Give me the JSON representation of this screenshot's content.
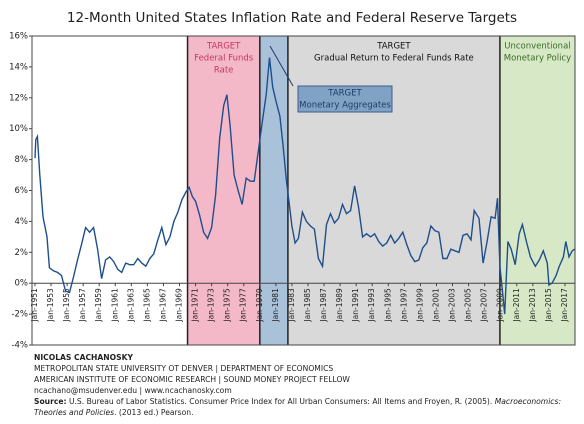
{
  "chart_data": {
    "type": "line",
    "title": "12-Month United States Inflation Rate and Federal Reserve Targets",
    "color": "#1f4e8c",
    "x": [
      1951.0,
      1951.1,
      1951.3,
      1951.6,
      1952.0,
      1952.5,
      1952.8,
      1953.3,
      1953.8,
      1954.3,
      1954.8,
      1955.3,
      1955.8,
      1956.3,
      1956.8,
      1957.3,
      1957.8,
      1958.3,
      1958.8,
      1959.3,
      1959.8,
      1960.3,
      1960.8,
      1961.3,
      1961.8,
      1962.3,
      1962.8,
      1963.3,
      1963.8,
      1964.3,
      1964.8,
      1965.3,
      1965.8,
      1966.3,
      1966.8,
      1967.3,
      1967.8,
      1968.3,
      1968.8,
      1969.3,
      1969.8,
      1970.2,
      1970.6,
      1971.0,
      1971.5,
      1972.0,
      1972.5,
      1973.0,
      1973.5,
      1974.0,
      1974.5,
      1974.9,
      1975.3,
      1975.8,
      1976.3,
      1976.8,
      1977.3,
      1977.8,
      1978.3,
      1978.8,
      1979.3,
      1979.8,
      1980.2,
      1980.6,
      1981.0,
      1981.5,
      1981.9,
      1982.3,
      1982.7,
      1983.0,
      1983.4,
      1983.8,
      1984.3,
      1984.8,
      1985.3,
      1985.8,
      1986.3,
      1986.8,
      1987.3,
      1987.8,
      1988.3,
      1988.8,
      1989.3,
      1989.8,
      1990.3,
      1990.8,
      1991.3,
      1991.8,
      1992.3,
      1992.8,
      1993.3,
      1993.8,
      1994.3,
      1994.8,
      1995.3,
      1995.8,
      1996.3,
      1996.8,
      1997.3,
      1997.8,
      1998.3,
      1998.8,
      1999.3,
      1999.8,
      2000.3,
      2000.8,
      2001.3,
      2001.8,
      2002.3,
      2002.8,
      2003.3,
      2003.8,
      2004.3,
      2004.8,
      2005.3,
      2005.7,
      2006.3,
      2006.8,
      2007.3,
      2007.8,
      2008.3,
      2008.6,
      2008.9,
      2009.2,
      2009.5,
      2009.9,
      2010.3,
      2010.8,
      2011.3,
      2011.7,
      2012.2,
      2012.7,
      2013.3,
      2013.8,
      2014.3,
      2014.8,
      2015.0,
      2015.4,
      2015.9,
      2016.3,
      2016.8,
      2017.1,
      2017.5,
      2017.9,
      2018.2
    ],
    "values": [
      8.1,
      9.3,
      9.5,
      7,
      4.3,
      3,
      1,
      0.8,
      0.7,
      0.5,
      -0.5,
      -0.6,
      0.4,
      1.5,
      2.5,
      3.6,
      3.3,
      3.6,
      2.2,
      0.3,
      1.5,
      1.7,
      1.4,
      0.9,
      0.7,
      1.3,
      1.2,
      1.2,
      1.6,
      1.3,
      1.1,
      1.6,
      1.9,
      2.8,
      3.6,
      2.5,
      3.0,
      4.0,
      4.6,
      5.4,
      5.9,
      6.2,
      5.6,
      5.3,
      4.4,
      3.3,
      2.9,
      3.6,
      5.7,
      9.4,
      11.5,
      12.2,
      10.2,
      7.0,
      6.0,
      5.1,
      6.8,
      6.6,
      6.6,
      8.5,
      10.4,
      12.2,
      14.6,
      12.7,
      11.8,
      10.8,
      8.9,
      6.7,
      5.0,
      3.7,
      2.6,
      2.9,
      4.6,
      4.0,
      3.7,
      3.5,
      1.6,
      1.1,
      3.8,
      4.5,
      3.9,
      4.2,
      5.1,
      4.5,
      4.7,
      6.3,
      4.9,
      3.0,
      3.2,
      3.0,
      3.2,
      2.7,
      2.4,
      2.6,
      3.1,
      2.6,
      2.9,
      3.3,
      2.5,
      1.8,
      1.4,
      1.5,
      2.3,
      2.6,
      3.7,
      3.4,
      3.3,
      1.6,
      1.6,
      2.2,
      2.1,
      2.0,
      3.1,
      3.2,
      2.8,
      4.7,
      4.2,
      1.3,
      2.7,
      4.3,
      4.2,
      5.5,
      1.1,
      -0.4,
      -2.0,
      2.7,
      2.2,
      1.2,
      3.2,
      3.8,
      2.7,
      1.7,
      1.1,
      1.5,
      2.1,
      1.3,
      -0.1,
      0.0,
      0.5,
      1.1,
      1.7,
      2.7,
      1.7,
      2.1,
      2.2
    ],
    "xlim": [
      1950.63,
      2018.25
    ],
    "xticks": [
      {
        "value": 1951,
        "label": "Jan-1951"
      },
      {
        "value": 1953,
        "label": "Jan-1953"
      },
      {
        "value": 1955,
        "label": "Jan-1955"
      },
      {
        "value": 1957,
        "label": "Jan-1957"
      },
      {
        "value": 1959,
        "label": "Jan-1959"
      },
      {
        "value": 1961,
        "label": "Jan-1961"
      },
      {
        "value": 1963,
        "label": "Jan-1963"
      },
      {
        "value": 1965,
        "label": "Jan-1965"
      },
      {
        "value": 1967,
        "label": "Jan-1967"
      },
      {
        "value": 1969,
        "label": "Jan-1969"
      },
      {
        "value": 1971,
        "label": "Jan-1971"
      },
      {
        "value": 1973,
        "label": "Jan-1973"
      },
      {
        "value": 1975,
        "label": "Jan-1975"
      },
      {
        "value": 1977,
        "label": "Jan-1977"
      },
      {
        "value": 1979,
        "label": "Jan-1979"
      },
      {
        "value": 1981,
        "label": "Jan-1981"
      },
      {
        "value": 1983,
        "label": "Jan-1983"
      },
      {
        "value": 1985,
        "label": "Jan-1985"
      },
      {
        "value": 1987,
        "label": "Jan-1987"
      },
      {
        "value": 1989,
        "label": "Jan-1989"
      },
      {
        "value": 1991,
        "label": "Jan-1991"
      },
      {
        "value": 1993,
        "label": "Jan-1993"
      },
      {
        "value": 1995,
        "label": "Jan-1995"
      },
      {
        "value": 1997,
        "label": "Jan-1997"
      },
      {
        "value": 1999,
        "label": "Jan-1999"
      },
      {
        "value": 2001,
        "label": "Jan-2001"
      },
      {
        "value": 2003,
        "label": "Jan-2003"
      },
      {
        "value": 2005,
        "label": "Jan-2005"
      },
      {
        "value": 2007,
        "label": "Jan-2007"
      },
      {
        "value": 2009,
        "label": "Jan-2009"
      },
      {
        "value": 2011,
        "label": "Jan-2011"
      },
      {
        "value": 2013,
        "label": "Jan-2013"
      },
      {
        "value": 2015,
        "label": "Jan-2015"
      },
      {
        "value": 2017,
        "label": "Jan-2017"
      }
    ],
    "ylim": [
      -4,
      16
    ],
    "yticks": [
      {
        "value": -4,
        "label": "-4%"
      },
      {
        "value": -2,
        "label": "-2%"
      },
      {
        "value": 0,
        "label": "0%"
      },
      {
        "value": 2,
        "label": "2%"
      },
      {
        "value": 4,
        "label": "4%"
      },
      {
        "value": 6,
        "label": "6%"
      },
      {
        "value": 8,
        "label": "8%"
      },
      {
        "value": 10,
        "label": "10%"
      },
      {
        "value": 12,
        "label": "12%"
      },
      {
        "value": 14,
        "label": "14%"
      },
      {
        "value": 16,
        "label": "16%"
      }
    ],
    "regions": [
      {
        "start": 1970,
        "end": 1979,
        "color": "#f3b9c9",
        "text_color": "#c8375f",
        "lines": [
          "TARGET",
          "Federal Funds",
          "Rate"
        ]
      },
      {
        "start": 1979,
        "end": 1982.5,
        "color": "#a9c2da",
        "text_color": "#1f3c6a",
        "lines": []
      },
      {
        "start": 1982.5,
        "end": 2008.9,
        "color": "#d9d9d9",
        "text_color": "#111111",
        "lines": [
          "TARGET",
          "Gradual Return to Federal Funds Rate"
        ]
      },
      {
        "start": 2008.9,
        "end": 2018.25,
        "color": "#d7e8c6",
        "text_color": "#3d6b2a",
        "lines": [
          "Unconventional",
          "Monetary Policy"
        ]
      }
    ],
    "box_annotation": [
      "TARGET",
      "Monetary Aggregates"
    ]
  },
  "footer": {
    "name": "NICOLAS CACHANOSKY",
    "line1": "METROPOLITAN STATE UNIVERSITY OT DENVER | DEPARTMENT OF ECONOMICS",
    "line2": "AMERICAN INSTITUTE OF ECONOMIC RESEARCH | SOUND MONEY PROJECT FELLOW",
    "line3": "ncachano@msudenver.edu | www.ncachanosky.com",
    "source_label": "Source:",
    "source_text": "U.S. Bureau of Labor Statistics. Consumer Price Index for All Urban Consumers: All Items and Froyen, R. (2005).",
    "source_book": "Macroeconomics: Theories and Policies",
    "source_end": ". (2013 ed.) Pearson."
  }
}
